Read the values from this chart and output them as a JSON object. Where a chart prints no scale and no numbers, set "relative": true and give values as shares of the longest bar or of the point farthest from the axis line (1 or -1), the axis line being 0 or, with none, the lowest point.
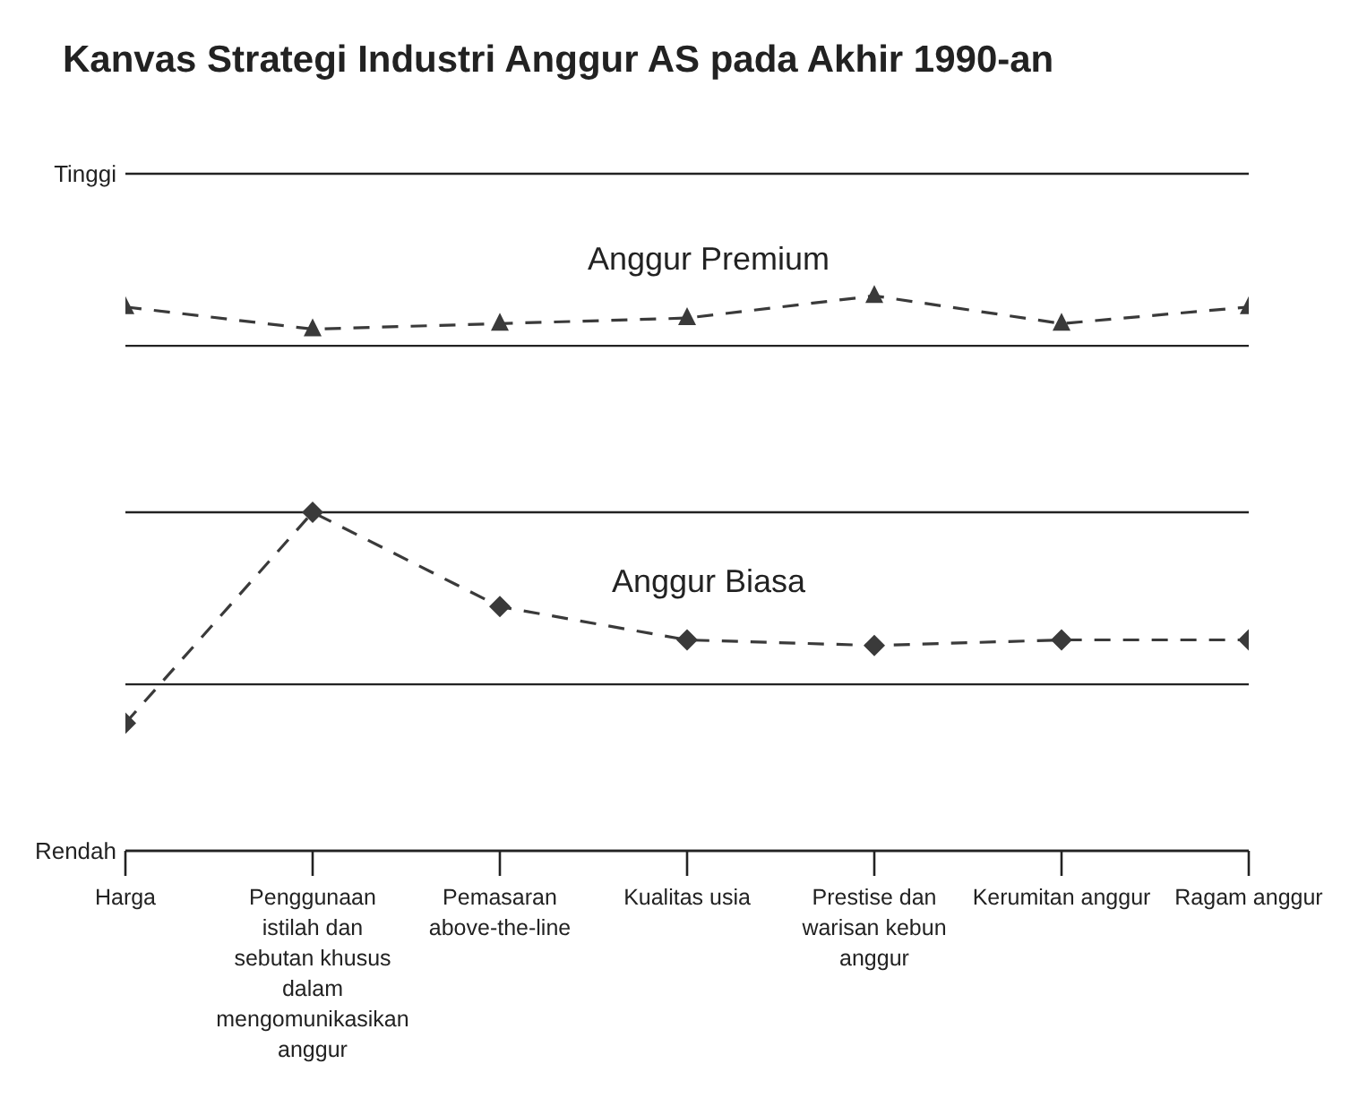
{
  "chart_data": {
    "type": "line",
    "title": "Kanvas Strategi Industri Anggur AS pada Akhir 1990-an",
    "relative": true,
    "categories": [
      "Harga",
      "Penggunaan istilah dan sebutan khusus dalam mengomunikasikan anggur",
      "Pemasaran above-the-line",
      "Kualitas usia",
      "Prestise dan warisan kebun anggur",
      "Kerumitan anggur",
      "Ragam anggur"
    ],
    "series": [
      {
        "name": "Anggur Premium",
        "color": "#3a3a3a",
        "values": [
          0.98,
          0.94,
          0.95,
          0.96,
          1,
          0.95,
          0.98
        ],
        "marker": "triangle",
        "line_style": "dashed"
      },
      {
        "name": "Anggur Biasa",
        "color": "#3a3a3a",
        "values": [
          0.23,
          0.61,
          0.44,
          0.38,
          0.37,
          0.38,
          0.38
        ],
        "marker": "diamond",
        "line_style": "dashed"
      }
    ],
    "legend": false,
    "ref_lines": [
      {
        "axis": "y",
        "value": 0,
        "label": "Rendah"
      },
      {
        "axis": "y",
        "value": 0.3,
        "label": null
      },
      {
        "axis": "y",
        "value": 0.61,
        "label": null
      },
      {
        "axis": "y",
        "value": 0.91,
        "label": null
      },
      {
        "axis": "y",
        "value": 1.22,
        "label": "Tinggi"
      }
    ]
  }
}
